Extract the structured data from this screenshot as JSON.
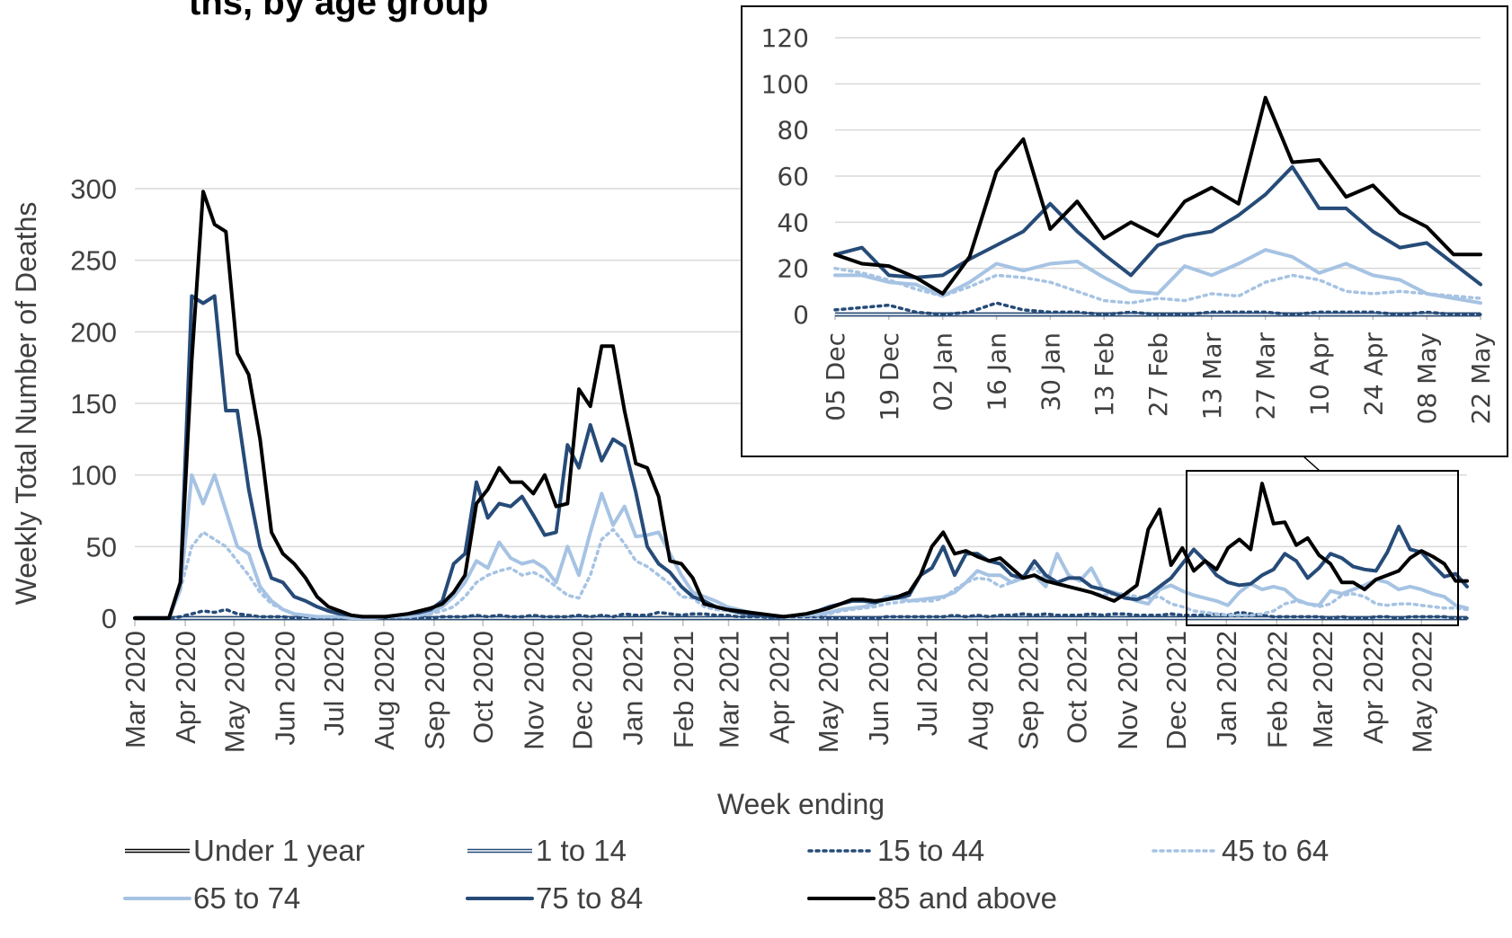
{
  "heading_fragment": "ths, by age group",
  "chart_data": [
    {
      "type": "line",
      "id": "main",
      "ylabel": "Weekly Total Number of Deaths",
      "xlabel": "Week ending",
      "ylim": [
        0,
        300
      ],
      "yticks": [
        0,
        50,
        100,
        150,
        200,
        250,
        300
      ],
      "month_ticks": [
        "Mar 2020",
        "Apr 2020",
        "May 2020",
        "Jun 2020",
        "Jul 2020",
        "Aug 2020",
        "Sep 2020",
        "Oct 2020",
        "Nov 2020",
        "Dec 2020",
        "Jan 2021",
        "Feb 2021",
        "Mar 2021",
        "Apr 2021",
        "May 2021",
        "Jun 2021",
        "Jul 2021",
        "Aug 2021",
        "Sep 2021",
        "Oct 2021",
        "Nov 2021",
        "Dec 2021",
        "Jan 2022",
        "Feb 2022",
        "Mar 2022",
        "Apr 2022",
        "May 2022"
      ],
      "x_start": "2020-03-01",
      "weeks": 118,
      "series": [
        {
          "name": "Under 1 year",
          "style": "double-black",
          "values": [
            0,
            0,
            0,
            0,
            0,
            0,
            0,
            0,
            0,
            0,
            0,
            0,
            0,
            0,
            0,
            0,
            0,
            0,
            0,
            0,
            0,
            0,
            0,
            0,
            0,
            0,
            0,
            0,
            0,
            0,
            0,
            0,
            0,
            0,
            0,
            0,
            0,
            0,
            0,
            0,
            0,
            0,
            0,
            0,
            0,
            0,
            0,
            0,
            0,
            0,
            0,
            0,
            0,
            0,
            0,
            0,
            0,
            0,
            0,
            0,
            0,
            0,
            0,
            0,
            0,
            0,
            0,
            0,
            0,
            0,
            0,
            0,
            0,
            0,
            0,
            0,
            0,
            0,
            0,
            0,
            0,
            0,
            0,
            0,
            0,
            0,
            0,
            0,
            0,
            0,
            0,
            0,
            0,
            0,
            0,
            0,
            0,
            0,
            0,
            0,
            0,
            0,
            0,
            0,
            0,
            0,
            0,
            0,
            0,
            0,
            0,
            0,
            0,
            0,
            0,
            0,
            0,
            0
          ]
        },
        {
          "name": "1 to 14",
          "style": "double-blue",
          "values": [
            0,
            0,
            0,
            0,
            0,
            0,
            0,
            0,
            0,
            0,
            0,
            0,
            0,
            0,
            0,
            0,
            0,
            0,
            0,
            0,
            0,
            0,
            0,
            0,
            0,
            0,
            0,
            0,
            0,
            0,
            0,
            0,
            0,
            0,
            0,
            0,
            0,
            0,
            0,
            0,
            0,
            0,
            0,
            0,
            0,
            0,
            0,
            0,
            0,
            0,
            0,
            0,
            0,
            0,
            0,
            0,
            0,
            0,
            0,
            0,
            0,
            0,
            0,
            0,
            0,
            0,
            0,
            0,
            0,
            0,
            0,
            0,
            0,
            0,
            0,
            0,
            0,
            0,
            0,
            0,
            0,
            0,
            0,
            0,
            0,
            0,
            0,
            0,
            0,
            0,
            0,
            0,
            0,
            0,
            0,
            0,
            0,
            0,
            0,
            0,
            0,
            0,
            0,
            0,
            0,
            0,
            0,
            0,
            0,
            0,
            0,
            0,
            0,
            0,
            0,
            0,
            0,
            0
          ]
        },
        {
          "name": "15 to 44",
          "style": "dotted-dark",
          "values": [
            0,
            0,
            0,
            0,
            1,
            3,
            5,
            4,
            6,
            3,
            2,
            1,
            1,
            1,
            0,
            1,
            0,
            0,
            0,
            0,
            0,
            0,
            0,
            0,
            0,
            0,
            0,
            1,
            1,
            1,
            2,
            1,
            2,
            1,
            1,
            2,
            1,
            1,
            1,
            2,
            1,
            2,
            1,
            3,
            2,
            2,
            4,
            3,
            2,
            3,
            3,
            2,
            2,
            1,
            1,
            1,
            0,
            1,
            1,
            1,
            1,
            0,
            0,
            0,
            0,
            0,
            1,
            1,
            1,
            1,
            1,
            1,
            2,
            1,
            2,
            1,
            2,
            2,
            3,
            2,
            3,
            2,
            2,
            2,
            3,
            2,
            3,
            3,
            2,
            2,
            2,
            3,
            2,
            2,
            2,
            3,
            2,
            4,
            3,
            2,
            1,
            1,
            1,
            1,
            1,
            0,
            1,
            0,
            0,
            1,
            1,
            0,
            1,
            1,
            1,
            1,
            0,
            0
          ]
        },
        {
          "name": "45 to 64",
          "style": "dotted-light",
          "values": [
            0,
            0,
            0,
            0,
            20,
            50,
            60,
            55,
            50,
            40,
            30,
            18,
            10,
            6,
            3,
            2,
            1,
            1,
            1,
            0,
            0,
            0,
            1,
            1,
            1,
            2,
            3,
            5,
            8,
            15,
            25,
            30,
            33,
            35,
            30,
            32,
            28,
            22,
            16,
            14,
            30,
            55,
            62,
            52,
            40,
            36,
            30,
            24,
            15,
            14,
            8,
            6,
            5,
            4,
            3,
            2,
            1,
            1,
            2,
            2,
            2,
            3,
            5,
            6,
            7,
            8,
            10,
            11,
            12,
            12,
            12,
            14,
            20,
            25,
            28,
            27,
            22,
            25,
            30,
            35,
            28,
            25,
            22,
            20,
            18,
            16,
            17,
            17,
            15,
            14,
            15,
            10,
            8,
            5,
            4,
            3,
            2,
            2,
            2,
            3,
            5,
            10,
            12,
            10,
            8,
            10,
            16,
            17,
            15,
            10,
            9,
            10,
            10,
            9,
            8,
            7,
            7,
            6
          ]
        },
        {
          "name": "65 to 74",
          "style": "solid-light",
          "values": [
            0,
            0,
            0,
            0,
            20,
            100,
            80,
            100,
            75,
            50,
            45,
            22,
            12,
            6,
            3,
            2,
            1,
            1,
            1,
            0,
            0,
            0,
            1,
            1,
            1,
            2,
            4,
            8,
            15,
            25,
            40,
            35,
            53,
            42,
            38,
            40,
            35,
            25,
            50,
            30,
            60,
            87,
            65,
            78,
            57,
            58,
            60,
            45,
            30,
            18,
            15,
            12,
            8,
            6,
            4,
            2,
            1,
            1,
            2,
            2,
            3,
            4,
            6,
            7,
            8,
            10,
            15,
            15,
            12,
            13,
            14,
            15,
            18,
            25,
            33,
            30,
            30,
            25,
            28,
            30,
            22,
            45,
            30,
            26,
            35,
            20,
            18,
            15,
            12,
            10,
            20,
            23,
            19,
            16,
            14,
            12,
            9,
            18,
            24,
            20,
            22,
            20,
            13,
            10,
            9,
            19,
            17,
            20,
            23,
            27,
            25,
            20,
            22,
            20,
            17,
            15,
            9,
            7
          ]
        },
        {
          "name": "75 to 84",
          "style": "solid-mid",
          "values": [
            0,
            0,
            0,
            0,
            25,
            225,
            220,
            225,
            145,
            145,
            90,
            50,
            28,
            25,
            15,
            12,
            8,
            5,
            3,
            2,
            1,
            1,
            1,
            2,
            3,
            4,
            6,
            12,
            38,
            45,
            95,
            70,
            80,
            78,
            85,
            72,
            58,
            60,
            121,
            105,
            135,
            110,
            125,
            120,
            88,
            50,
            38,
            32,
            22,
            15,
            12,
            8,
            6,
            4,
            3,
            2,
            1,
            1,
            2,
            3,
            5,
            8,
            10,
            12,
            12,
            11,
            13,
            14,
            16,
            30,
            35,
            50,
            30,
            45,
            45,
            40,
            38,
            30,
            28,
            40,
            30,
            25,
            28,
            28,
            22,
            20,
            17,
            14,
            13,
            16,
            22,
            28,
            38,
            48,
            40,
            30,
            25,
            23,
            24,
            30,
            34,
            45,
            40,
            28,
            35,
            45,
            42,
            36,
            34,
            33,
            46,
            64,
            48,
            46,
            37,
            29,
            31,
            22
          ]
        },
        {
          "name": "85 and above",
          "style": "solid-black",
          "values": [
            0,
            0,
            0,
            0,
            25,
            180,
            298,
            275,
            270,
            185,
            170,
            125,
            60,
            45,
            38,
            28,
            15,
            8,
            5,
            2,
            1,
            1,
            1,
            2,
            3,
            5,
            7,
            10,
            18,
            30,
            80,
            90,
            105,
            95,
            95,
            87,
            100,
            78,
            80,
            160,
            148,
            190,
            190,
            145,
            108,
            105,
            85,
            40,
            38,
            28,
            10,
            8,
            6,
            5,
            4,
            3,
            2,
            1,
            2,
            3,
            5,
            7,
            10,
            13,
            13,
            12,
            13,
            15,
            18,
            30,
            50,
            60,
            45,
            47,
            43,
            40,
            42,
            35,
            28,
            30,
            26,
            24,
            22,
            20,
            18,
            15,
            12,
            17,
            23,
            62,
            76,
            37,
            49,
            33,
            40,
            34,
            49,
            55,
            48,
            94,
            66,
            67,
            51,
            56,
            44,
            38,
            25,
            25,
            20,
            27,
            30,
            33,
            42,
            47,
            43,
            38,
            26,
            26
          ]
        }
      ]
    },
    {
      "type": "line",
      "id": "inset",
      "ylim": [
        0,
        120
      ],
      "yticks": [
        0,
        20,
        40,
        60,
        80,
        100,
        120
      ],
      "xticks": [
        "05 Dec",
        "19 Dec",
        "02 Jan",
        "16 Jan",
        "30 Jan",
        "13 Feb",
        "27 Feb",
        "13 Mar",
        "27 Mar",
        "10 Apr",
        "24 Apr",
        "08 May",
        "22 May"
      ],
      "weeks": 25,
      "series": [
        {
          "name": "Under 1 year",
          "style": "double-black",
          "values": [
            0,
            0,
            0,
            0,
            0,
            0,
            0,
            0,
            0,
            0,
            0,
            0,
            0,
            0,
            0,
            0,
            0,
            0,
            0,
            0,
            0,
            0,
            0,
            0,
            0
          ]
        },
        {
          "name": "1 to 14",
          "style": "double-blue",
          "values": [
            0,
            0,
            0,
            0,
            0,
            0,
            0,
            0,
            0,
            0,
            0,
            0,
            0,
            0,
            0,
            0,
            0,
            0,
            0,
            0,
            0,
            0,
            0,
            0,
            0
          ]
        },
        {
          "name": "15 to 44",
          "style": "dotted-dark",
          "values": [
            2,
            3,
            4,
            1,
            0,
            1,
            5,
            2,
            1,
            1,
            0,
            1,
            0,
            0,
            1,
            1,
            1,
            0,
            1,
            1,
            1,
            0,
            1,
            0,
            0
          ]
        },
        {
          "name": "45 to 64",
          "style": "dotted-light",
          "values": [
            20,
            18,
            15,
            11,
            8,
            12,
            17,
            16,
            14,
            10,
            6,
            5,
            7,
            6,
            9,
            8,
            14,
            17,
            15,
            10,
            9,
            10,
            9,
            8,
            7
          ]
        },
        {
          "name": "65 to 74",
          "style": "solid-light",
          "values": [
            17,
            17,
            14,
            13,
            8,
            14,
            22,
            19,
            22,
            23,
            16,
            10,
            9,
            21,
            17,
            22,
            28,
            25,
            18,
            22,
            17,
            15,
            9,
            7,
            5
          ]
        },
        {
          "name": "75 to 84",
          "style": "solid-mid",
          "values": [
            26,
            29,
            17,
            16,
            17,
            24,
            30,
            36,
            48,
            36,
            26,
            17,
            30,
            34,
            36,
            43,
            52,
            64,
            46,
            46,
            36,
            29,
            31,
            22,
            13
          ]
        },
        {
          "name": "85 and above",
          "style": "solid-black",
          "values": [
            26,
            22,
            21,
            16,
            9,
            25,
            62,
            76,
            37,
            49,
            33,
            40,
            34,
            49,
            55,
            48,
            94,
            66,
            67,
            51,
            56,
            44,
            38,
            26,
            26
          ]
        }
      ]
    }
  ],
  "colors": {
    "black": "#000000",
    "dark_blue": "#264B78",
    "mid_blue": "#5A84B8",
    "light_blue": "#A6C3E3",
    "grid": "#D9D9D9",
    "axis": "#BFBFBF",
    "text": "#404040"
  }
}
